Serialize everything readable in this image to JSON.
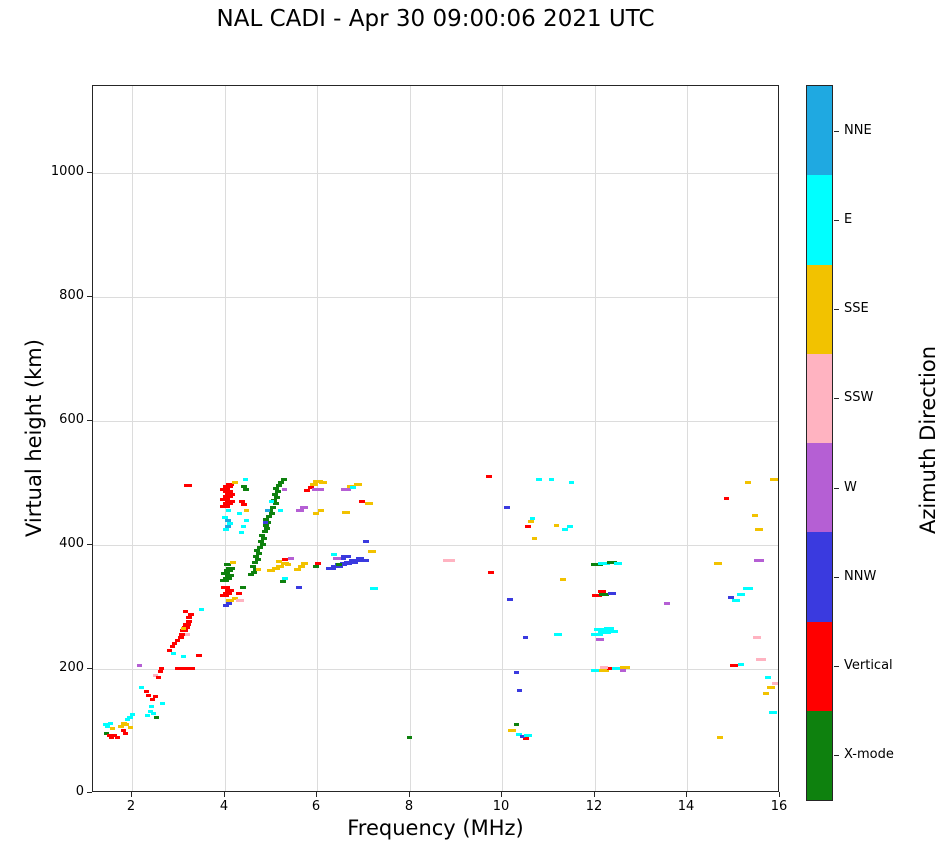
{
  "title": "NAL CADI - Apr 30 09:00:06 2021 UTC",
  "chart_data": {
    "type": "scatter",
    "title": "NAL CADI - Apr 30 09:00:06 2021 UTC",
    "xlabel": "Frequency (MHz)",
    "ylabel": "Virtual height (km)",
    "colorbar_label": "Azimuth Direction",
    "xlim": [
      1.15,
      16
    ],
    "ylim": [
      0,
      1140
    ],
    "xticks": [
      2,
      4,
      6,
      8,
      10,
      12,
      14,
      16
    ],
    "yticks": [
      0,
      200,
      400,
      600,
      800,
      1000
    ],
    "grid": true,
    "legend_position": "right-colorbar",
    "categories": [
      {
        "label": "NNE",
        "color": "#1FA9E1"
      },
      {
        "label": "E",
        "color": "#00FFFF"
      },
      {
        "label": "SSE",
        "color": "#F2C200"
      },
      {
        "label": "SSW",
        "color": "#FFB3C1"
      },
      {
        "label": "W",
        "color": "#B55FD4"
      },
      {
        "label": "NNW",
        "color": "#3A3ADF"
      },
      {
        "label": "Vertical",
        "color": "#FF0000"
      },
      {
        "label": "X-mode",
        "color": "#0E810E"
      }
    ],
    "point_format": "[frequency_MHz, virtual_height_km, category_index, dash_width_px(optional)]",
    "points": [
      [
        1.42,
        110,
        1
      ],
      [
        1.47,
        108,
        1
      ],
      [
        1.52,
        112,
        1
      ],
      [
        1.45,
        96,
        7
      ],
      [
        1.5,
        93,
        6
      ],
      [
        1.56,
        90,
        6
      ],
      [
        1.62,
        92,
        6
      ],
      [
        1.67,
        90,
        6
      ],
      [
        1.58,
        104,
        2
      ],
      [
        1.75,
        108,
        2,
        6
      ],
      [
        1.81,
        112,
        2,
        6
      ],
      [
        1.87,
        110,
        2
      ],
      [
        1.8,
        100,
        6
      ],
      [
        1.86,
        96,
        6
      ],
      [
        1.9,
        118,
        1
      ],
      [
        1.95,
        122,
        1,
        6
      ],
      [
        2.0,
        126,
        1
      ],
      [
        1.97,
        106,
        2
      ],
      [
        2.15,
        205,
        4
      ],
      [
        2.2,
        170,
        1
      ],
      [
        2.3,
        163,
        6
      ],
      [
        2.36,
        158,
        6
      ],
      [
        2.33,
        125,
        1
      ],
      [
        2.4,
        131,
        1
      ],
      [
        2.46,
        128,
        1
      ],
      [
        2.52,
        122,
        7
      ],
      [
        2.44,
        150,
        6
      ],
      [
        2.5,
        155,
        6
      ],
      [
        2.5,
        190,
        3
      ],
      [
        2.56,
        186,
        6
      ],
      [
        2.6,
        196,
        6
      ],
      [
        2.63,
        201,
        6
      ],
      [
        2.66,
        145,
        1
      ],
      [
        2.42,
        140,
        1
      ],
      [
        2.8,
        230,
        6
      ],
      [
        2.86,
        236,
        6
      ],
      [
        2.92,
        241,
        6
      ],
      [
        2.97,
        246,
        6
      ],
      [
        2.9,
        225,
        1
      ],
      [
        3.02,
        200,
        6,
        10
      ],
      [
        3.12,
        200,
        6,
        12
      ],
      [
        3.24,
        201,
        6,
        10
      ],
      [
        3.05,
        250,
        6,
        6
      ],
      [
        3.1,
        256,
        6,
        8
      ],
      [
        3.12,
        262,
        6,
        8
      ],
      [
        3.16,
        267,
        6,
        8
      ],
      [
        3.18,
        272,
        6,
        8
      ],
      [
        3.22,
        277,
        6,
        6
      ],
      [
        3.22,
        283,
        6,
        6
      ],
      [
        3.26,
        288,
        6,
        6
      ],
      [
        3.1,
        266,
        2
      ],
      [
        3.2,
        255,
        3
      ],
      [
        3.16,
        292,
        6
      ],
      [
        3.2,
        496,
        6,
        8
      ],
      [
        3.1,
        220,
        1
      ],
      [
        3.45,
        222,
        6,
        6
      ],
      [
        3.5,
        296,
        1
      ],
      [
        4.02,
        302,
        5,
        6
      ],
      [
        4.08,
        306,
        5,
        6
      ],
      [
        4.0,
        318,
        6,
        9
      ],
      [
        4.06,
        322,
        6,
        9
      ],
      [
        4.11,
        326,
        6,
        9
      ],
      [
        4.02,
        331,
        6,
        9
      ],
      [
        4.12,
        311,
        2,
        8
      ],
      [
        4.22,
        313,
        2,
        6
      ],
      [
        4.0,
        342,
        7,
        9
      ],
      [
        4.06,
        346,
        7,
        9
      ],
      [
        4.11,
        350,
        7,
        9
      ],
      [
        4.02,
        354,
        7,
        9
      ],
      [
        4.07,
        358,
        7,
        9
      ],
      [
        4.12,
        362,
        7,
        9
      ],
      [
        4.05,
        368,
        7,
        7
      ],
      [
        4.17,
        372,
        2,
        6
      ],
      [
        4.02,
        425,
        1,
        6
      ],
      [
        4.07,
        430,
        0,
        6
      ],
      [
        4.12,
        435,
        1,
        6
      ],
      [
        4.06,
        440,
        0,
        6
      ],
      [
        4.01,
        445,
        1,
        6
      ],
      [
        4.07,
        455,
        1,
        5
      ],
      [
        4.0,
        462,
        6,
        10
      ],
      [
        4.06,
        466,
        6,
        10
      ],
      [
        4.11,
        470,
        6,
        10
      ],
      [
        4.01,
        474,
        6,
        10
      ],
      [
        4.06,
        478,
        6,
        10
      ],
      [
        4.12,
        482,
        6,
        10
      ],
      [
        4.07,
        486,
        6,
        10
      ],
      [
        4.01,
        490,
        6,
        10
      ],
      [
        4.06,
        494,
        6,
        10
      ],
      [
        4.11,
        498,
        6,
        8
      ],
      [
        4.22,
        500,
        2,
        6
      ],
      [
        4.33,
        311,
        3,
        8
      ],
      [
        4.3,
        321,
        6,
        6
      ],
      [
        4.4,
        331,
        7,
        6
      ],
      [
        4.36,
        420,
        1,
        5
      ],
      [
        4.41,
        430,
        1,
        5
      ],
      [
        4.46,
        440,
        1,
        5
      ],
      [
        4.31,
        450,
        1,
        5
      ],
      [
        4.46,
        456,
        2,
        5
      ],
      [
        4.41,
        465,
        6,
        6
      ],
      [
        4.36,
        470,
        6,
        6
      ],
      [
        4.46,
        490,
        7,
        6
      ],
      [
        4.41,
        495,
        7,
        6
      ],
      [
        4.45,
        505,
        1,
        5
      ],
      [
        4.56,
        352,
        7,
        6
      ],
      [
        4.62,
        356,
        7,
        6
      ],
      [
        4.68,
        361,
        7,
        6
      ],
      [
        4.6,
        366,
        7,
        6
      ],
      [
        4.66,
        371,
        7,
        6
      ],
      [
        4.72,
        376,
        7,
        6
      ],
      [
        4.68,
        381,
        7,
        6
      ],
      [
        4.74,
        386,
        7,
        6
      ],
      [
        4.7,
        391,
        7,
        6
      ],
      [
        4.76,
        396,
        7,
        6
      ],
      [
        4.82,
        401,
        7,
        6
      ],
      [
        4.78,
        406,
        7,
        6
      ],
      [
        4.84,
        411,
        7,
        6
      ],
      [
        4.8,
        416,
        7,
        6
      ],
      [
        4.86,
        421,
        7,
        6
      ],
      [
        4.92,
        426,
        7,
        6
      ],
      [
        4.88,
        431,
        7,
        6
      ],
      [
        4.94,
        436,
        7,
        6
      ],
      [
        4.9,
        441,
        7,
        6
      ],
      [
        4.96,
        446,
        7,
        6
      ],
      [
        5.02,
        451,
        7,
        6
      ],
      [
        4.98,
        456,
        7,
        6
      ],
      [
        5.04,
        461,
        7,
        6
      ],
      [
        5.1,
        466,
        7,
        6
      ],
      [
        5.06,
        471,
        7,
        6
      ],
      [
        5.12,
        476,
        7,
        6
      ],
      [
        5.08,
        481,
        7,
        6
      ],
      [
        5.14,
        486,
        7,
        6
      ],
      [
        5.1,
        491,
        7,
        6
      ],
      [
        5.16,
        496,
        7,
        6
      ],
      [
        5.22,
        501,
        7,
        6
      ],
      [
        5.27,
        506,
        7,
        6
      ],
      [
        4.87,
        436,
        5,
        5
      ],
      [
        4.93,
        456,
        0,
        5
      ],
      [
        5.0,
        470,
        1,
        5
      ],
      [
        4.72,
        360,
        2,
        5
      ],
      [
        5.2,
        455,
        1,
        5
      ],
      [
        5.3,
        490,
        4,
        5
      ],
      [
        5.0,
        358,
        2,
        8
      ],
      [
        5.1,
        362,
        2,
        8
      ],
      [
        5.2,
        366,
        2,
        8
      ],
      [
        5.3,
        370,
        2,
        8
      ],
      [
        5.16,
        373,
        2,
        6
      ],
      [
        5.36,
        368,
        2,
        6
      ],
      [
        5.3,
        376,
        6,
        6
      ],
      [
        5.42,
        378,
        4,
        6
      ],
      [
        5.3,
        346,
        1,
        6
      ],
      [
        5.26,
        341,
        7,
        6
      ],
      [
        5.56,
        360,
        2,
        7
      ],
      [
        5.66,
        365,
        2,
        7
      ],
      [
        5.72,
        370,
        2,
        7
      ],
      [
        5.62,
        456,
        4,
        8
      ],
      [
        5.72,
        461,
        4,
        8
      ],
      [
        5.77,
        488,
        6,
        6
      ],
      [
        5.87,
        492,
        6,
        6
      ],
      [
        5.92,
        498,
        2,
        8
      ],
      [
        6.02,
        502,
        2,
        10
      ],
      [
        6.12,
        500,
        2,
        8
      ],
      [
        6.02,
        490,
        4,
        12
      ],
      [
        5.97,
        450,
        2,
        6
      ],
      [
        6.07,
        455,
        2,
        6
      ],
      [
        6.02,
        370,
        6,
        6
      ],
      [
        5.97,
        365,
        7,
        6
      ],
      [
        5.6,
        332,
        5,
        6
      ],
      [
        6.3,
        362,
        5,
        10
      ],
      [
        6.42,
        365,
        5,
        12
      ],
      [
        6.52,
        368,
        5,
        12
      ],
      [
        6.62,
        370,
        5,
        12
      ],
      [
        6.72,
        372,
        5,
        14
      ],
      [
        6.82,
        375,
        5,
        12
      ],
      [
        6.52,
        378,
        5,
        10
      ],
      [
        6.62,
        381,
        5,
        10
      ],
      [
        6.92,
        378,
        5,
        8
      ],
      [
        7.02,
        375,
        5,
        8
      ],
      [
        6.42,
        378,
        4,
        8
      ],
      [
        6.36,
        385,
        1,
        6
      ],
      [
        6.46,
        368,
        7,
        6
      ],
      [
        7.06,
        405,
        5,
        6
      ],
      [
        6.62,
        490,
        4,
        10
      ],
      [
        6.72,
        495,
        2,
        8
      ],
      [
        6.87,
        498,
        2,
        8
      ],
      [
        6.77,
        492,
        1,
        6
      ],
      [
        6.62,
        452,
        2,
        8
      ],
      [
        6.97,
        470,
        6,
        6
      ],
      [
        7.12,
        466,
        2,
        8
      ],
      [
        7.17,
        390,
        2,
        8
      ],
      [
        7.22,
        330,
        1,
        8
      ],
      [
        8.0,
        90,
        7,
        5
      ],
      [
        8.85,
        375,
        3,
        12
      ],
      [
        9.7,
        510,
        6,
        6
      ],
      [
        9.75,
        356,
        6,
        6
      ],
      [
        10.1,
        460,
        5,
        6
      ],
      [
        10.16,
        312,
        5,
        6
      ],
      [
        10.2,
        100,
        2,
        8
      ],
      [
        10.36,
        95,
        1,
        6
      ],
      [
        10.5,
        88,
        6,
        6
      ],
      [
        10.44,
        91,
        5,
        5
      ],
      [
        10.56,
        92,
        1,
        8
      ],
      [
        10.3,
        195,
        5,
        5
      ],
      [
        10.36,
        165,
        5,
        5
      ],
      [
        10.5,
        250,
        5,
        5
      ],
      [
        10.56,
        430,
        6,
        6
      ],
      [
        10.62,
        437,
        2,
        6
      ],
      [
        10.66,
        443,
        1,
        5
      ],
      [
        10.7,
        410,
        2,
        5
      ],
      [
        10.8,
        505,
        1,
        6
      ],
      [
        10.3,
        110,
        7,
        5
      ],
      [
        11.2,
        255,
        1,
        8
      ],
      [
        11.3,
        345,
        2,
        6
      ],
      [
        11.36,
        425,
        1,
        6
      ],
      [
        11.46,
        430,
        1,
        6
      ],
      [
        11.16,
        432,
        2,
        5
      ],
      [
        11.06,
        505,
        1,
        5
      ],
      [
        11.5,
        500,
        1,
        5
      ],
      [
        12.05,
        198,
        1,
        13
      ],
      [
        12.2,
        198,
        2,
        10
      ],
      [
        12.36,
        200,
        6,
        10
      ],
      [
        12.5,
        200,
        1,
        12
      ],
      [
        12.66,
        202,
        2,
        10
      ],
      [
        12.2,
        203,
        3,
        8
      ],
      [
        12.6,
        198,
        4,
        6
      ],
      [
        12.05,
        255,
        1,
        12
      ],
      [
        12.2,
        258,
        1,
        13
      ],
      [
        12.36,
        260,
        1,
        12
      ],
      [
        12.1,
        263,
        1,
        12
      ],
      [
        12.3,
        266,
        1,
        10
      ],
      [
        12.1,
        248,
        4,
        8
      ],
      [
        12.05,
        318,
        6,
        10
      ],
      [
        12.2,
        320,
        7,
        10
      ],
      [
        12.36,
        322,
        5,
        8
      ],
      [
        12.16,
        325,
        6,
        8
      ],
      [
        12.05,
        368,
        7,
        12
      ],
      [
        12.2,
        370,
        1,
        12
      ],
      [
        12.36,
        372,
        7,
        10
      ],
      [
        12.5,
        370,
        1,
        8
      ],
      [
        13.55,
        305,
        4,
        6
      ],
      [
        14.65,
        370,
        2,
        8
      ],
      [
        14.7,
        90,
        2,
        6
      ],
      [
        14.85,
        475,
        6,
        5
      ],
      [
        14.95,
        315,
        5,
        6
      ],
      [
        15.05,
        310,
        1,
        8
      ],
      [
        15.15,
        320,
        1,
        8
      ],
      [
        15.3,
        330,
        1,
        10
      ],
      [
        15.0,
        205,
        6,
        8
      ],
      [
        15.15,
        208,
        1,
        6
      ],
      [
        15.55,
        375,
        4,
        10
      ],
      [
        15.5,
        250,
        3,
        8
      ],
      [
        15.6,
        215,
        3,
        10
      ],
      [
        15.55,
        425,
        2,
        8
      ],
      [
        15.45,
        447,
        2,
        6
      ],
      [
        15.9,
        505,
        2,
        10
      ],
      [
        15.85,
        130,
        1,
        8
      ],
      [
        15.8,
        170,
        2,
        8
      ],
      [
        15.9,
        176,
        3,
        6
      ],
      [
        15.75,
        186,
        1,
        6
      ],
      [
        15.3,
        500,
        2,
        6
      ],
      [
        15.7,
        160,
        2,
        6
      ]
    ]
  }
}
